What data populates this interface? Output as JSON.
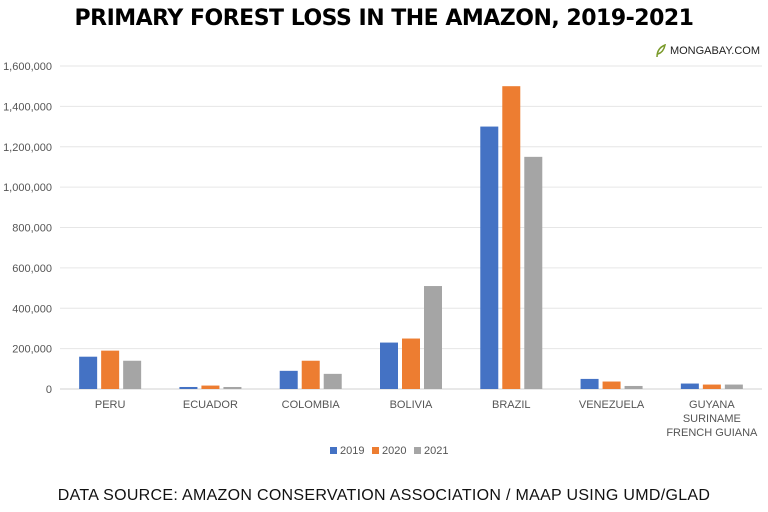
{
  "chart_data": {
    "type": "bar",
    "title": "PRIMARY FOREST LOSS IN THE AMAZON, 2019-2021",
    "categories": [
      "PERU",
      "ECUADOR",
      "COLOMBIA",
      "BOLIVIA",
      "BRAZIL",
      "VENEZUELA",
      [
        "GUYANA",
        "SURINAME",
        "FRENCH GUIANA"
      ]
    ],
    "series": [
      {
        "name": "2019",
        "color": "#4472C4",
        "values": [
          160000,
          10000,
          90000,
          230000,
          1300000,
          50000,
          27000
        ]
      },
      {
        "name": "2020",
        "color": "#ED7D31",
        "values": [
          190000,
          17000,
          140000,
          250000,
          1500000,
          37000,
          22000
        ]
      },
      {
        "name": "2021",
        "color": "#A5A5A5",
        "values": [
          140000,
          10000,
          75000,
          510000,
          1150000,
          15000,
          22000
        ]
      }
    ],
    "ylim": [
      0,
      1600000
    ],
    "yticks": [
      "0",
      "200,000",
      "400,000",
      "600,000",
      "800,000",
      "1,000,000",
      "1,200,000",
      "1,400,000",
      "1,600,000"
    ],
    "grid": true,
    "legend": "bottom",
    "xlabel": "",
    "ylabel": ""
  },
  "logo": {
    "text": "MONGABAY.COM",
    "icon": "leaf-icon"
  },
  "source": "DATA SOURCE: AMAZON CONSERVATION ASSOCIATION / MAAP USING UMD/GLAD"
}
